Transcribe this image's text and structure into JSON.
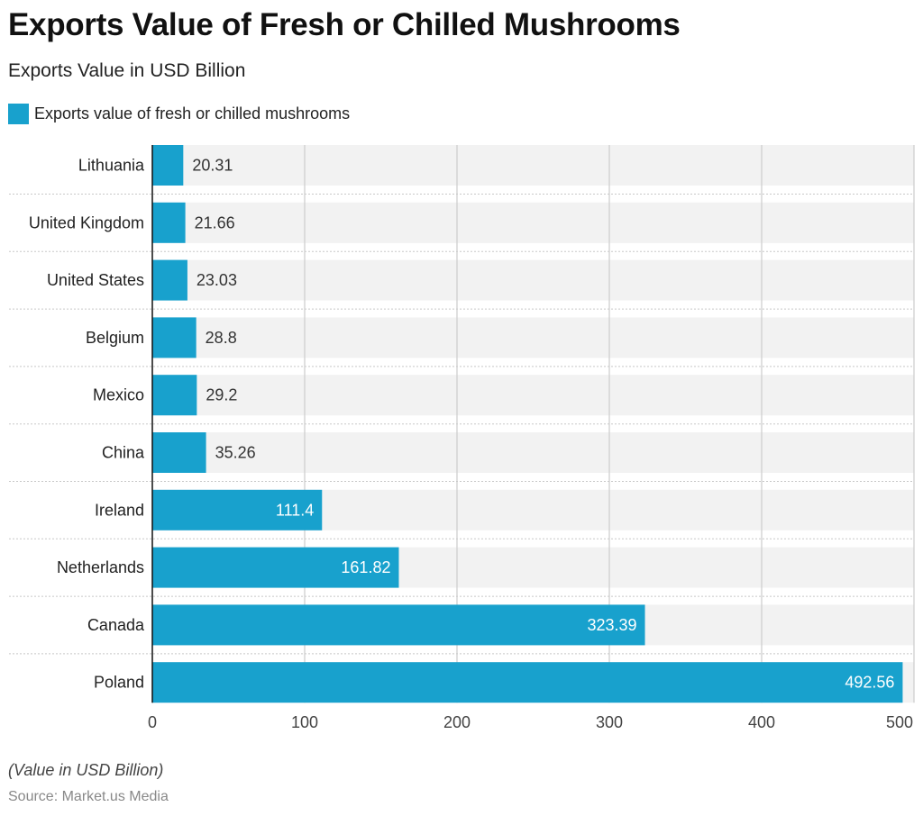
{
  "chart_data": {
    "type": "bar",
    "orientation": "horizontal",
    "title": "Exports Value of Fresh or Chilled Mushrooms",
    "subtitle": "Exports Value in USD Billion",
    "categories": [
      "Lithuania",
      "United Kingdom",
      "United States",
      "Belgium",
      "Mexico",
      "China",
      "Ireland",
      "Netherlands",
      "Canada",
      "Poland"
    ],
    "series": [
      {
        "name": "Exports value of fresh or chilled mushrooms",
        "values": [
          20.31,
          21.66,
          23.03,
          28.8,
          29.2,
          35.26,
          111.4,
          161.82,
          323.39,
          492.56
        ],
        "color": "#18a1cd"
      }
    ],
    "data_labels": [
      "20.31",
      "21.66",
      "23.03",
      "28.8",
      "29.2",
      "35.26",
      "111.4",
      "161.82",
      "323.39",
      "492.56"
    ],
    "xlim": [
      0,
      500
    ],
    "x_ticks": [
      "0",
      "100",
      "200",
      "300",
      "400",
      "500"
    ],
    "grid": true,
    "legend_position": "top-left",
    "note": "(Value in USD Billion)",
    "source": "Source: Market.us Media"
  }
}
